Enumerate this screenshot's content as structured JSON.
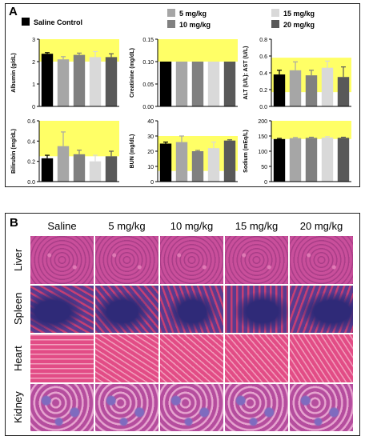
{
  "panel_a": {
    "letter": "A",
    "legend": [
      {
        "label": "Saline Control",
        "color": "#000000"
      },
      {
        "label": "5 mg/kg",
        "color": "#a6a6a6"
      },
      {
        "label": "10 mg/kg",
        "color": "#808080"
      },
      {
        "label": "15 mg/kg",
        "color": "#d9d9d9"
      },
      {
        "label": "20 mg/kg",
        "color": "#595959"
      }
    ]
  },
  "chart_data": [
    {
      "type": "bar",
      "ylabel": "Albumin (g/dL)",
      "ylim": [
        0,
        3
      ],
      "ticks": [
        "0",
        "1",
        "2",
        "3"
      ],
      "normal_range": [
        2,
        3
      ],
      "categories": [
        "Saline Control",
        "5 mg/kg",
        "10 mg/kg",
        "15 mg/kg",
        "20 mg/kg"
      ],
      "values": [
        2.35,
        2.1,
        2.3,
        2.2,
        2.2
      ],
      "errors": [
        0.05,
        0.12,
        0.08,
        0.25,
        0.15
      ]
    },
    {
      "type": "bar",
      "ylabel": "Creatinine (mg/dL)",
      "ylim": [
        0,
        0.15
      ],
      "ticks": [
        "0.00",
        "0.05",
        "0.10",
        "0.15"
      ],
      "normal_range": [
        0.1,
        0.15
      ],
      "categories": [
        "Saline Control",
        "5 mg/kg",
        "10 mg/kg",
        "15 mg/kg",
        "20 mg/kg"
      ],
      "values": [
        0.1,
        0.1,
        0.1,
        0.1,
        0.1
      ],
      "errors": [
        0,
        0,
        0,
        0,
        0
      ]
    },
    {
      "type": "bar",
      "ylabel": "ALT (U/L): AST (U/L)",
      "ylim": [
        0,
        0.8
      ],
      "ticks": [
        "0.0",
        "0.2",
        "0.4",
        "0.6",
        "0.8"
      ],
      "normal_range": [
        0.17,
        0.58
      ],
      "categories": [
        "Saline Control",
        "5 mg/kg",
        "10 mg/kg",
        "15 mg/kg",
        "20 mg/kg"
      ],
      "values": [
        0.38,
        0.43,
        0.37,
        0.46,
        0.35
      ],
      "errors": [
        0.05,
        0.1,
        0.06,
        0.08,
        0.12
      ]
    },
    {
      "type": "bar",
      "ylabel": "Bilirubin (mg/dL)",
      "ylim": [
        0,
        0.6
      ],
      "ticks": [
        "0.0",
        "0.2",
        "0.4",
        "0.6"
      ],
      "normal_range": [
        0.25,
        0.6
      ],
      "categories": [
        "Saline Control",
        "5 mg/kg",
        "10 mg/kg",
        "15 mg/kg",
        "20 mg/kg"
      ],
      "values": [
        0.23,
        0.35,
        0.27,
        0.2,
        0.25
      ],
      "errors": [
        0.03,
        0.14,
        0.04,
        0.06,
        0.05
      ]
    },
    {
      "type": "bar",
      "ylabel": "BUN (mg/dL)",
      "ylim": [
        0,
        40
      ],
      "ticks": [
        "0",
        "10",
        "20",
        "30",
        "40"
      ],
      "normal_range": [
        7,
        30
      ],
      "categories": [
        "Saline Control",
        "5 mg/kg",
        "10 mg/kg",
        "15 mg/kg",
        "20 mg/kg"
      ],
      "values": [
        25,
        26,
        20,
        22,
        27
      ],
      "errors": [
        1,
        4,
        0.5,
        4,
        0.5
      ]
    },
    {
      "type": "bar",
      "ylabel": "Sodium (mEq/L)",
      "ylim": [
        0,
        200
      ],
      "ticks": [
        "0",
        "50",
        "100",
        "150",
        "200"
      ],
      "normal_range": [
        140,
        200
      ],
      "categories": [
        "Saline Control",
        "5 mg/kg",
        "10 mg/kg",
        "15 mg/kg",
        "20 mg/kg"
      ],
      "values": [
        140,
        143,
        144,
        145,
        144
      ],
      "errors": [
        2,
        2,
        2,
        3,
        2
      ]
    }
  ],
  "panel_b": {
    "letter": "B",
    "columns": [
      "Saline",
      "5 mg/kg",
      "10 mg/kg",
      "15 mg/kg",
      "20 mg/kg"
    ],
    "rows": [
      {
        "label": "Liver",
        "base": "#c94f9b",
        "accent": "#e07ab5"
      },
      {
        "label": "Spleen",
        "base": "#5a3b8f",
        "accent": "#c63f73"
      },
      {
        "label": "Heart",
        "base": "#e24c86",
        "accent": "#f2a0bd"
      },
      {
        "label": "Kidney",
        "base": "#b54d9e",
        "accent": "#e6a4cf"
      }
    ]
  }
}
